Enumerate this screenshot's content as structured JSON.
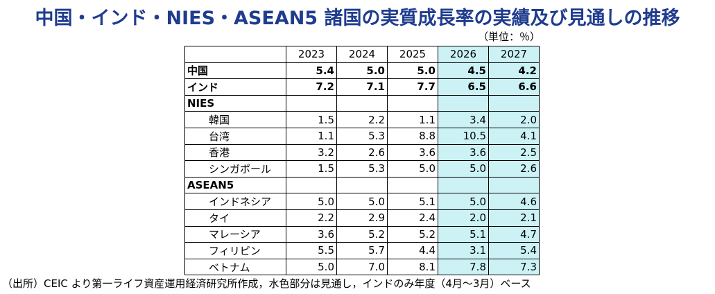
{
  "title": "中国・インド・NIES・ASEAN5 諸国の実質成長率の実績及び見通しの推移",
  "unit": "（単位：％）",
  "colors": {
    "title": "#1f3c8f",
    "forecast_bg": "#ccf2f6"
  },
  "note": "（出所）CEIC より第一ライフ資産運用経済研究所作成，水色部分は見通し，インドのみ年度（4月～3月）ベース",
  "chart_data": {
    "type": "table",
    "columns": [
      "2023",
      "2024",
      "2025",
      "2026",
      "2027"
    ],
    "forecast_columns": [
      "2026",
      "2027"
    ],
    "rows": [
      {
        "label": "中国",
        "bold": true,
        "values": [
          "5.4",
          "5.0",
          "5.0",
          "4.5",
          "4.2"
        ]
      },
      {
        "label": "インド",
        "bold": true,
        "values": [
          "7.2",
          "7.1",
          "7.7",
          "6.5",
          "6.6"
        ]
      },
      {
        "label": "NIES",
        "group": true,
        "values": [
          "",
          "",
          "",
          "",
          ""
        ]
      },
      {
        "label": "韓国",
        "sub": true,
        "values": [
          "1.5",
          "2.2",
          "1.1",
          "3.4",
          "2.0"
        ]
      },
      {
        "label": "台湾",
        "sub": true,
        "values": [
          "1.1",
          "5.3",
          "8.8",
          "10.5",
          "4.1"
        ]
      },
      {
        "label": "香港",
        "sub": true,
        "values": [
          "3.2",
          "2.6",
          "3.6",
          "3.6",
          "2.5"
        ]
      },
      {
        "label": "シンガポール",
        "sub": true,
        "values": [
          "1.5",
          "5.3",
          "5.0",
          "5.0",
          "2.6"
        ]
      },
      {
        "label": "ASEAN5",
        "group": true,
        "values": [
          "",
          "",
          "",
          "",
          ""
        ]
      },
      {
        "label": "インドネシア",
        "sub": true,
        "values": [
          "5.0",
          "5.0",
          "5.1",
          "5.0",
          "4.6"
        ]
      },
      {
        "label": "タイ",
        "sub": true,
        "values": [
          "2.2",
          "2.9",
          "2.4",
          "2.0",
          "2.1"
        ]
      },
      {
        "label": "マレーシア",
        "sub": true,
        "values": [
          "3.6",
          "5.2",
          "5.2",
          "5.1",
          "4.7"
        ]
      },
      {
        "label": "フィリピン",
        "sub": true,
        "values": [
          "5.5",
          "5.7",
          "4.4",
          "3.1",
          "5.4"
        ]
      },
      {
        "label": "ベトナム",
        "sub": true,
        "values": [
          "5.0",
          "7.0",
          "8.1",
          "7.8",
          "7.3"
        ]
      }
    ]
  }
}
